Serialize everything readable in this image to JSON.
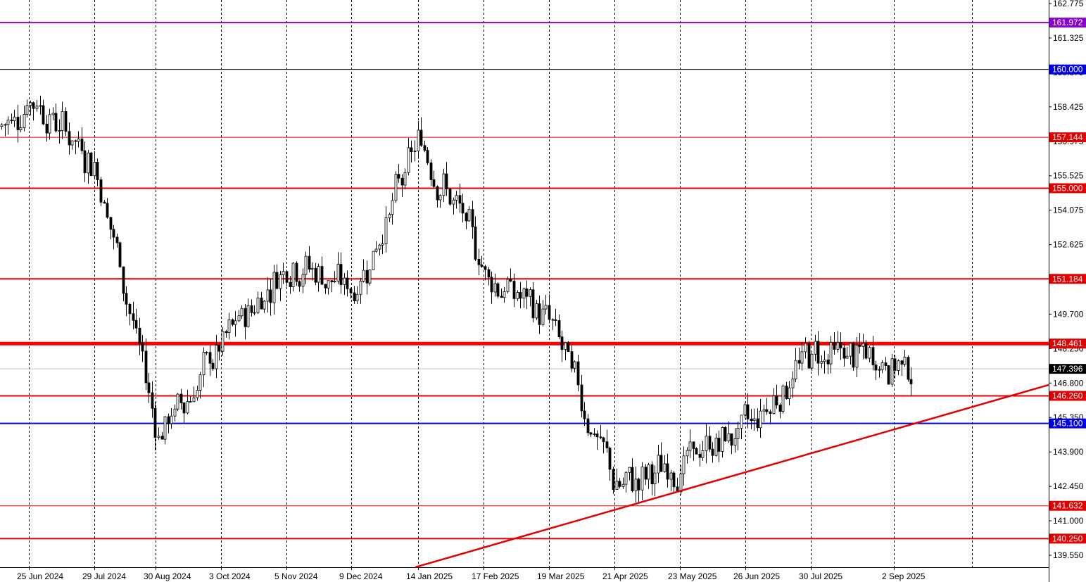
{
  "chart_data": {
    "type": "candlestick",
    "symbol": "",
    "title": "",
    "ylim": [
      139.25,
      162.775
    ],
    "y_ticks": [
      162.775,
      161.325,
      159.875,
      158.425,
      156.975,
      155.525,
      154.075,
      152.625,
      151.175,
      149.7,
      148.25,
      146.8,
      145.35,
      143.9,
      142.45,
      141.0,
      139.55
    ],
    "x_ticks": [
      "25 Jun 2024",
      "29 Jul 2024",
      "30 Aug 2024",
      "3 Oct 2024",
      "5 Nov 2024",
      "9 Dec 2024",
      "14 Jan 2025",
      "17 Feb 2025",
      "19 Mar 2025",
      "21 Apr 2025",
      "23 May 2025",
      "26 Jun 2025",
      "30 Jul 2025",
      "2 Sep 2025"
    ],
    "current_price": 147.396,
    "horizontal_levels": [
      {
        "label": "161.972",
        "value": 161.972,
        "color": "#8B00D2",
        "width": 2
      },
      {
        "label": "160.000",
        "value": 160.0,
        "color": "#000000",
        "width": 1
      },
      {
        "label": "157.144",
        "value": 157.144,
        "color": "#E30000",
        "width": 1
      },
      {
        "label": "155.000",
        "value": 155.0,
        "color": "#E30000",
        "width": 2
      },
      {
        "label": "151.184",
        "value": 151.184,
        "color": "#E30000",
        "width": 2
      },
      {
        "label": "148.461",
        "value": 148.461,
        "color": "#FF0000",
        "width": 5
      },
      {
        "label": "146.260",
        "value": 146.26,
        "color": "#E30000",
        "width": 2
      },
      {
        "label": "145.100",
        "value": 145.1,
        "color": "#0000E0",
        "width": 2
      },
      {
        "label": "141.632",
        "value": 141.632,
        "color": "#E30000",
        "width": 1
      },
      {
        "label": "140.250",
        "value": 140.25,
        "color": "#E30000",
        "width": 2
      }
    ],
    "badge_colors": {
      "161.972": "#8B00D2",
      "160.000": "#0000E0",
      "157.144": "#E30000",
      "155.000": "#E30000",
      "151.184": "#E30000",
      "148.461": "#E30000",
      "146.260": "#E30000",
      "145.100": "#0000E0",
      "141.632": "#E30000",
      "140.250": "#E30000",
      "147.396": "#000000"
    },
    "trendline": {
      "color": "#E30000",
      "start_date": "14 Jan 2025",
      "start_value": 139.25,
      "end_date": "2 Sep 2025",
      "end_value": 145.1,
      "extends_right": true
    },
    "close_path": [
      [
        "25 Jun 2024",
        158.9
      ],
      [
        "29 Jul 2024",
        156.0
      ],
      [
        "30 Aug 2024",
        144.6
      ],
      [
        "3 Oct 2024",
        148.4
      ],
      [
        "5 Nov 2024",
        152.1
      ],
      [
        "9 Dec 2024",
        150.6
      ],
      [
        "14 Jan 2025",
        157.1
      ],
      [
        "17 Feb 2025",
        151.5
      ],
      [
        "19 Mar 2025",
        149.3
      ],
      [
        "21 Apr 2025",
        142.3
      ],
      [
        "23 May 2025",
        143.4
      ],
      [
        "26 Jun 2025",
        145.0
      ],
      [
        "30 Jul 2025",
        148.2
      ],
      [
        "2 Sep 2025",
        147.6
      ]
    ],
    "grid": true
  }
}
